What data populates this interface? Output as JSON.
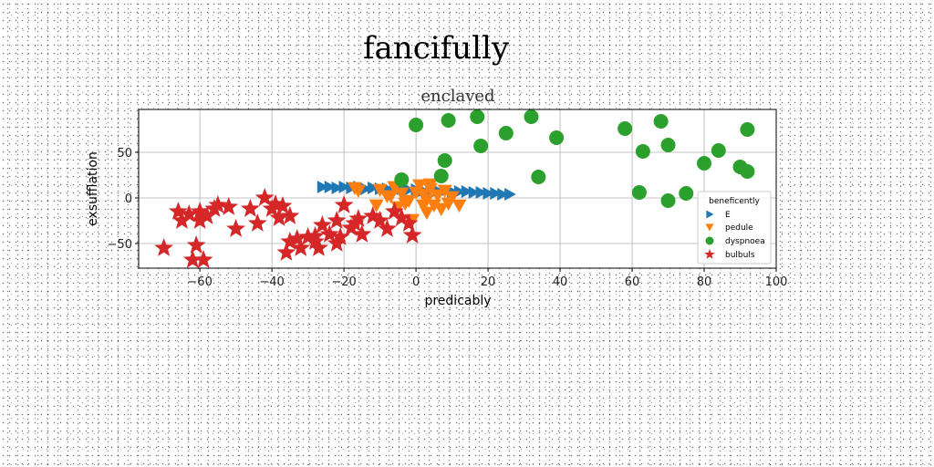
{
  "figure_title": "fancifully",
  "chart_data": {
    "type": "scatter",
    "title": "enclaved",
    "xlabel": "predicably",
    "ylabel": "exsufflation",
    "xlim": [
      -77,
      100
    ],
    "ylim": [
      -77,
      97
    ],
    "xticks": [
      -60,
      -40,
      -20,
      0,
      20,
      40,
      60,
      80,
      100
    ],
    "yticks": [
      -50,
      0,
      50
    ],
    "xtick_labels": [
      "−60",
      "−40",
      "−20",
      "0",
      "20",
      "40",
      "60",
      "80",
      "100"
    ],
    "ytick_labels": [
      "−50",
      "0",
      "50"
    ],
    "grid": true,
    "legend": {
      "title": "beneficently",
      "placement": "lower-right",
      "entries": [
        "E",
        "pedule",
        "dyspnoea",
        "bulbuls"
      ]
    },
    "series": [
      {
        "name": "E",
        "marker": "triangle-right",
        "color": "#1f77b4",
        "points": [
          [
            -26,
            12
          ],
          [
            -24,
            12
          ],
          [
            -22,
            11
          ],
          [
            -20,
            12
          ],
          [
            -18,
            11
          ],
          [
            -16,
            12
          ],
          [
            -14,
            10
          ],
          [
            -12,
            11
          ],
          [
            -10,
            10
          ],
          [
            -8,
            10
          ],
          [
            -6,
            9
          ],
          [
            -4,
            10
          ],
          [
            -2,
            9
          ],
          [
            0,
            9
          ],
          [
            2,
            8
          ],
          [
            4,
            9
          ],
          [
            6,
            8
          ],
          [
            8,
            8
          ],
          [
            10,
            7
          ],
          [
            12,
            7
          ],
          [
            14,
            7
          ],
          [
            16,
            6
          ],
          [
            18,
            6
          ],
          [
            20,
            5
          ],
          [
            22,
            5
          ],
          [
            24,
            4
          ],
          [
            26,
            4
          ]
        ]
      },
      {
        "name": "pedule",
        "marker": "triangle-down",
        "color": "#ff7f0e",
        "points": [
          [
            -17,
            11
          ],
          [
            -16,
            8
          ],
          [
            -10,
            9
          ],
          [
            -8,
            2
          ],
          [
            -6,
            12
          ],
          [
            -4,
            5
          ],
          [
            -2,
            -3
          ],
          [
            0,
            6
          ],
          [
            1,
            14
          ],
          [
            2,
            4
          ],
          [
            3,
            -2
          ],
          [
            4,
            10
          ],
          [
            5,
            -8
          ],
          [
            6,
            3
          ],
          [
            7,
            -12
          ],
          [
            8,
            8
          ],
          [
            9,
            -6
          ],
          [
            10,
            1
          ],
          [
            -1,
            -24
          ],
          [
            -3,
            -6
          ],
          [
            -11,
            -8
          ],
          [
            -5,
            -10
          ],
          [
            3,
            -16
          ],
          [
            12,
            -8
          ],
          [
            -7,
            2
          ],
          [
            2,
            -8
          ],
          [
            4,
            15
          ]
        ]
      },
      {
        "name": "dyspnoea",
        "marker": "circle",
        "color": "#2ca02c",
        "points": [
          [
            0,
            80
          ],
          [
            9,
            85
          ],
          [
            17,
            89
          ],
          [
            18,
            57
          ],
          [
            25,
            71
          ],
          [
            32,
            89
          ],
          [
            34,
            23
          ],
          [
            39,
            66
          ],
          [
            58,
            76
          ],
          [
            62,
            6
          ],
          [
            63,
            51
          ],
          [
            68,
            84
          ],
          [
            70,
            -3
          ],
          [
            70,
            58
          ],
          [
            75,
            5
          ],
          [
            80,
            38
          ],
          [
            84,
            52
          ],
          [
            90,
            34
          ],
          [
            92,
            75
          ],
          [
            92,
            29
          ],
          [
            8,
            41
          ],
          [
            7,
            24
          ],
          [
            -4,
            20
          ]
        ]
      },
      {
        "name": "bulbuls",
        "marker": "star",
        "color": "#d62728",
        "points": [
          [
            -70,
            -55
          ],
          [
            -66,
            -15
          ],
          [
            -65,
            -25
          ],
          [
            -63,
            -18
          ],
          [
            -62,
            -68
          ],
          [
            -61,
            -52
          ],
          [
            -60,
            -25
          ],
          [
            -60,
            -15
          ],
          [
            -58,
            -20
          ],
          [
            -59,
            -68
          ],
          [
            -56,
            -12
          ],
          [
            -55,
            -8
          ],
          [
            -52,
            -10
          ],
          [
            -50,
            -34
          ],
          [
            -46,
            -12
          ],
          [
            -44,
            -28
          ],
          [
            -42,
            0
          ],
          [
            -40,
            -12
          ],
          [
            -38,
            -22
          ],
          [
            -37,
            -9
          ],
          [
            -36,
            -60
          ],
          [
            -35,
            -48
          ],
          [
            -35,
            -20
          ],
          [
            -33,
            -45
          ],
          [
            -32,
            -55
          ],
          [
            -30,
            -43
          ],
          [
            -28,
            -48
          ],
          [
            -27,
            -55
          ],
          [
            -26,
            -30
          ],
          [
            -24,
            -40
          ],
          [
            -22,
            -50
          ],
          [
            -22,
            -25
          ],
          [
            -21,
            -43
          ],
          [
            -20,
            -8
          ],
          [
            -18,
            -33
          ],
          [
            -17,
            -28
          ],
          [
            -15,
            -40
          ],
          [
            -12,
            -20
          ],
          [
            -10,
            -25
          ],
          [
            -8,
            -34
          ],
          [
            -6,
            -15
          ],
          [
            -4,
            -22
          ],
          [
            -2,
            -28
          ],
          [
            -1,
            -41
          ],
          [
            -16,
            -23
          ],
          [
            -39,
            -7
          ],
          [
            -28,
            -42
          ]
        ]
      }
    ]
  }
}
